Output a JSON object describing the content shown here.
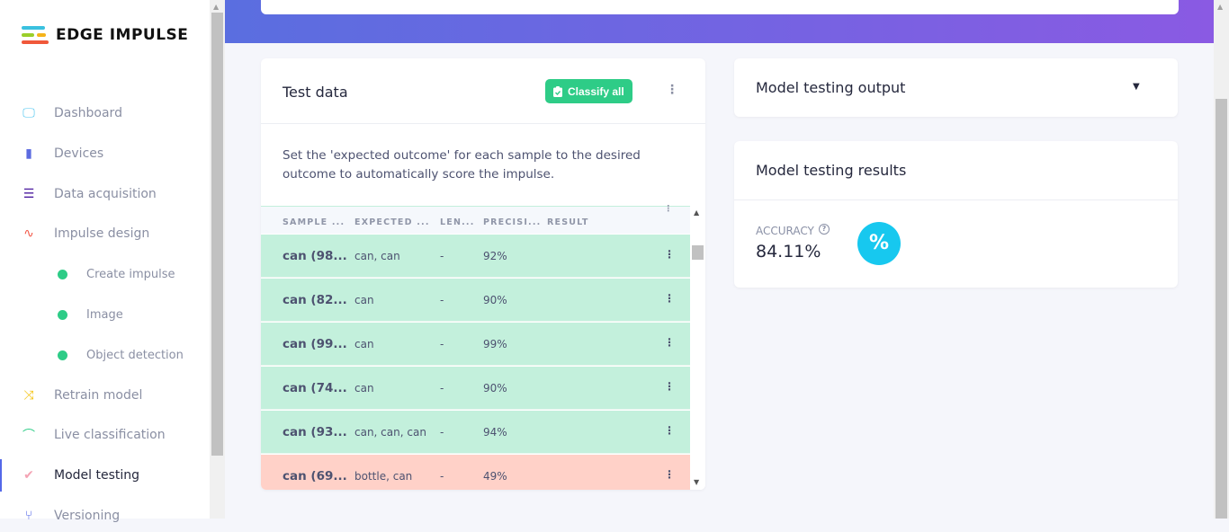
{
  "brand": {
    "name": "EDGE IMPULSE"
  },
  "sidebar": {
    "items": [
      {
        "label": "Dashboard",
        "icon": "monitor-icon",
        "color": "#4ec6f0"
      },
      {
        "label": "Devices",
        "icon": "chip-icon",
        "color": "#5c6be0"
      },
      {
        "label": "Data acquisition",
        "icon": "database-icon",
        "color": "#4a1a9e"
      },
      {
        "label": "Impulse design",
        "icon": "pulse-icon",
        "color": "#f25a4a"
      },
      {
        "label": "Create impulse",
        "icon": "dot-icon"
      },
      {
        "label": "Image",
        "icon": "dot-icon"
      },
      {
        "label": "Object detection",
        "icon": "dot-icon"
      },
      {
        "label": "Retrain model",
        "icon": "shuffle-icon",
        "color": "#f5c518"
      },
      {
        "label": "Live classification",
        "icon": "curve-icon",
        "color": "#2ecc87"
      },
      {
        "label": "Model testing",
        "icon": "clipboard-check-icon",
        "color": "#f4a3b4",
        "active": true
      },
      {
        "label": "Versioning",
        "icon": "branch-icon",
        "color": "#5468e8"
      }
    ]
  },
  "test_data": {
    "title": "Test data",
    "classify_all": "Classify all",
    "description": "Set the 'expected outcome' for each sample to the desired outcome to automatically score the impulse.",
    "columns": [
      "SAMPLE ...",
      "EXPECTED ...",
      "LEN...",
      "PRECISI...",
      "RESULT"
    ],
    "rows": [
      {
        "sample": "can (98...",
        "expected": "can, can",
        "length": "-",
        "precision": "92%",
        "result": "",
        "status": "correct"
      },
      {
        "sample": "can (82...",
        "expected": "can",
        "length": "-",
        "precision": "90%",
        "result": "",
        "status": "correct"
      },
      {
        "sample": "can (99...",
        "expected": "can",
        "length": "-",
        "precision": "99%",
        "result": "",
        "status": "correct"
      },
      {
        "sample": "can (74...",
        "expected": "can",
        "length": "-",
        "precision": "90%",
        "result": "",
        "status": "correct"
      },
      {
        "sample": "can (93...",
        "expected": "can, can, can",
        "length": "-",
        "precision": "94%",
        "result": "",
        "status": "correct"
      },
      {
        "sample": "can (69...",
        "expected": "bottle, can",
        "length": "-",
        "precision": "49%",
        "result": "",
        "status": "incorrect"
      }
    ]
  },
  "output": {
    "title": "Model testing output"
  },
  "results": {
    "title": "Model testing results",
    "accuracy_label": "ACCURACY",
    "accuracy": "84.11%",
    "icon": "percent-icon"
  },
  "colors": {
    "correct": "#c3f0dc",
    "incorrect": "#ffd1c8",
    "accent": "#2ecc87",
    "percent": "#17c8ef"
  }
}
